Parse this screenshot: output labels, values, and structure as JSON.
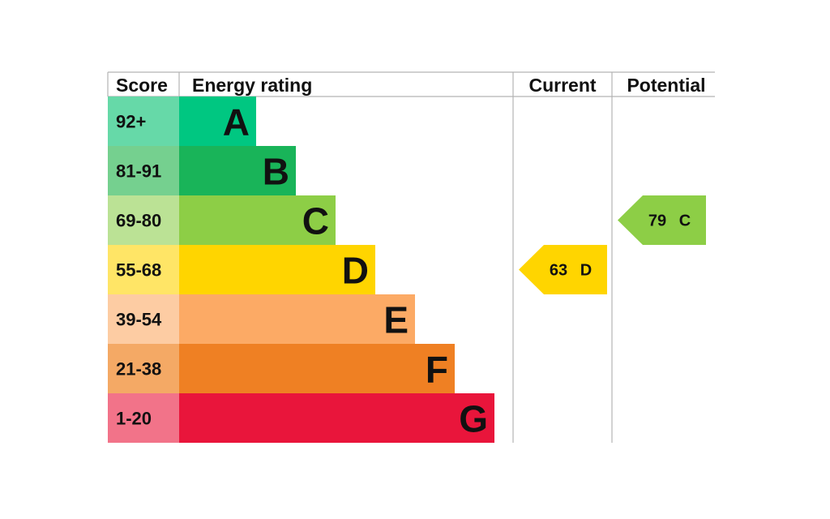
{
  "headers": {
    "score": "Score",
    "rating": "Energy rating",
    "current": "Current",
    "potential": "Potential"
  },
  "chart_data": {
    "type": "bar",
    "bands": [
      {
        "letter": "A",
        "score": "92+",
        "color": "#00c781",
        "score_bg": "#66d9a8"
      },
      {
        "letter": "B",
        "score": "81-91",
        "color": "#19b459",
        "score_bg": "#75d08f"
      },
      {
        "letter": "C",
        "score": "69-80",
        "color": "#8dce46",
        "score_bg": "#bbe295"
      },
      {
        "letter": "D",
        "score": "55-68",
        "color": "#ffd500",
        "score_bg": "#ffe566"
      },
      {
        "letter": "E",
        "score": "39-54",
        "color": "#fcaa65",
        "score_bg": "#fdcca3"
      },
      {
        "letter": "F",
        "score": "21-38",
        "color": "#ef8023",
        "score_bg": "#f4a965"
      },
      {
        "letter": "G",
        "score": "1-20",
        "color": "#e9153b",
        "score_bg": "#f27389"
      }
    ],
    "current": {
      "value": 63,
      "letter": "D",
      "color": "#ffd500"
    },
    "potential": {
      "value": 79,
      "letter": "C",
      "color": "#8dce46"
    },
    "grid_color": "#b3b3b3"
  }
}
